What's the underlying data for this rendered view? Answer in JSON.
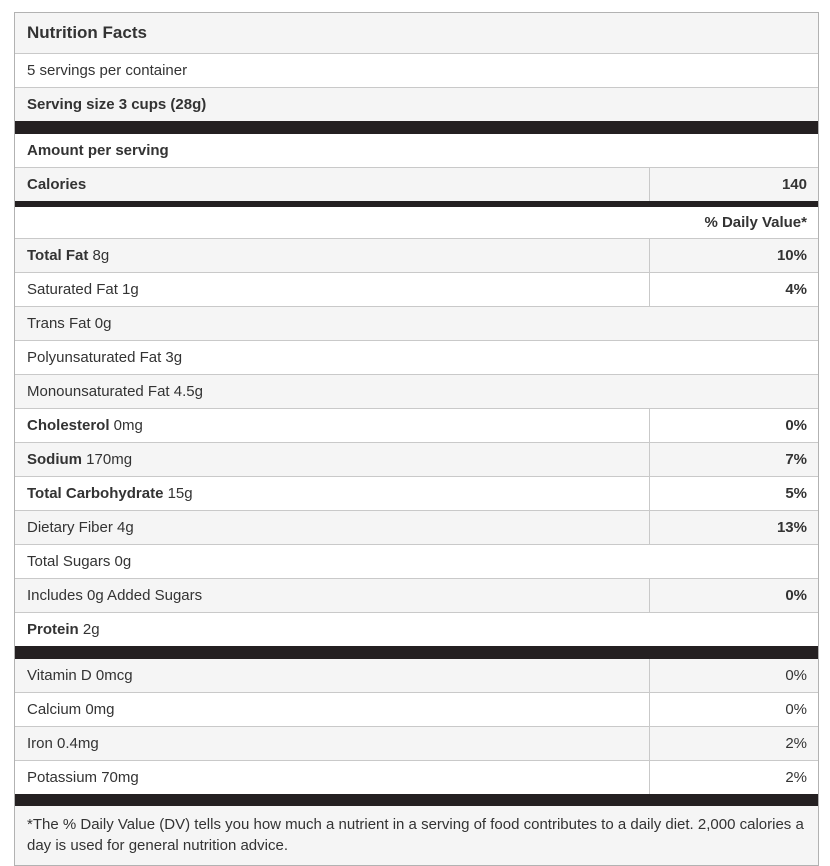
{
  "label": {
    "title": "Nutrition Facts",
    "servings_per_container": "5 servings per container",
    "serving_size": "Serving size 3 cups (28g)",
    "amount_per_serving": "Amount per serving",
    "calories": {
      "label": "Calories",
      "value": "140"
    },
    "daily_value_header": "% Daily Value*",
    "nutrients": [
      {
        "bold_part": "Total Fat",
        "normal_part": "8g",
        "daily_value": "10%"
      },
      {
        "bold_part": "",
        "normal_part": "Saturated Fat 1g",
        "daily_value": "4%"
      },
      {
        "bold_part": "",
        "normal_part": "Trans Fat 0g",
        "daily_value": ""
      },
      {
        "bold_part": "",
        "normal_part": "Polyunsaturated Fat 3g",
        "daily_value": ""
      },
      {
        "bold_part": "",
        "normal_part": "Monounsaturated Fat 4.5g",
        "daily_value": ""
      },
      {
        "bold_part": "Cholesterol",
        "normal_part": "0mg",
        "daily_value": "0%"
      },
      {
        "bold_part": "Sodium",
        "normal_part": "170mg",
        "daily_value": "7%"
      },
      {
        "bold_part": "Total Carbohydrate",
        "normal_part": "15g",
        "daily_value": "5%"
      },
      {
        "bold_part": "",
        "normal_part": "Dietary Fiber 4g",
        "daily_value": "13%"
      },
      {
        "bold_part": "",
        "normal_part": "Total Sugars 0g",
        "daily_value": ""
      },
      {
        "bold_part": "",
        "normal_part": "Includes 0g Added Sugars",
        "daily_value": "0%"
      },
      {
        "bold_part": "Protein",
        "normal_part": "2g",
        "daily_value": ""
      }
    ],
    "vitamins": [
      {
        "name": "Vitamin D 0mcg",
        "daily_value": "0%"
      },
      {
        "name": "Calcium 0mg",
        "daily_value": "0%"
      },
      {
        "name": "Iron 0.4mg",
        "daily_value": "2%"
      },
      {
        "name": "Potassium 70mg",
        "daily_value": "2%"
      }
    ],
    "footnote": "*The % Daily Value (DV) tells you how much a nutrient in a serving of food contributes to a daily diet. 2,000 calories a day is used for general nutrition advice."
  },
  "colors": {
    "bar": "#242021",
    "stripe": "#f5f5f5",
    "divider": "#c9c9c9",
    "outer_border": "#b2b2b2",
    "text": "#333333"
  }
}
